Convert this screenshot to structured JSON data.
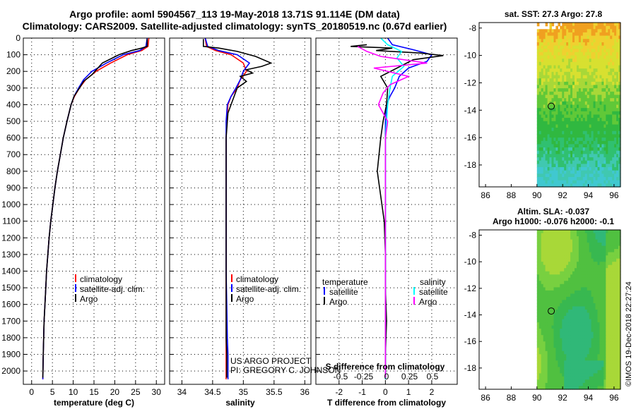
{
  "title_line1": "Argo profile: aoml 5904567_113 19-May-2018 13.71S 91.114E (DM data)",
  "title_line2": "Climatology: CARS2009. Satellite-adjusted climatology: synTS_20180519.nc (0.67d earlier)",
  "credit_line1": "US ARGO PROJECT",
  "credit_line2": "PI: GREGORY C. JOHNSON",
  "stamp": "©IMOS 19-Dec-2018 22:27:24",
  "colors": {
    "climatology": "#ff0000",
    "satellite": "#0000ff",
    "argo": "#000000",
    "argo_salinity": "#ff00ff",
    "sat_salinity": "#00ffff"
  },
  "chart_data": [
    {
      "type": "line",
      "name": "temperature-profile",
      "xlabel": "temperature (deg C)",
      "ylabel": "",
      "xlim": [
        -2,
        32
      ],
      "ylim": [
        2080,
        0
      ],
      "xticks": [
        0,
        5,
        10,
        15,
        20,
        25,
        30
      ],
      "yticks": [
        0,
        100,
        200,
        300,
        400,
        500,
        600,
        700,
        800,
        900,
        1000,
        1100,
        1200,
        1300,
        1400,
        1500,
        1600,
        1700,
        1800,
        1900,
        2000
      ],
      "legend": [
        "climatology",
        "satellite-adj. clim.",
        "Argo"
      ],
      "series": [
        {
          "name": "climatology",
          "color": "#ff0000",
          "x": [
            28.2,
            28.0,
            26.5,
            23,
            19,
            15.5,
            13,
            11.5,
            10.3,
            9.5,
            8.5,
            7.6,
            6.9,
            6.2,
            5.6,
            5.1,
            4.6,
            4.2,
            3.9,
            3.6,
            3.4,
            3.2,
            3.0,
            2.9,
            2.8,
            2.7
          ],
          "y": [
            0,
            50,
            75,
            100,
            150,
            200,
            250,
            300,
            350,
            400,
            500,
            600,
            700,
            800,
            900,
            1000,
            1100,
            1200,
            1300,
            1400,
            1500,
            1600,
            1700,
            1800,
            1900,
            2050
          ]
        },
        {
          "name": "satellite-adj. clim.",
          "color": "#0000ff",
          "x": [
            27.8,
            27.5,
            26,
            22,
            18,
            14.5,
            12.5,
            11.3,
            10.2,
            9.5,
            8.5,
            7.6,
            6.9,
            6.2,
            5.6,
            5.1,
            4.6,
            4.2,
            3.9,
            3.6,
            3.4,
            3.2,
            3.0,
            2.9,
            2.8,
            2.7
          ],
          "y": [
            0,
            50,
            75,
            100,
            150,
            200,
            250,
            300,
            350,
            400,
            500,
            600,
            700,
            800,
            900,
            1000,
            1100,
            1200,
            1300,
            1400,
            1500,
            1600,
            1700,
            1800,
            1900,
            2050
          ]
        },
        {
          "name": "Argo",
          "color": "#000000",
          "x": [
            27.8,
            27.8,
            26.5,
            24,
            21,
            17,
            14.5,
            12.5,
            11.5,
            10.2,
            9.5,
            8.5,
            7.6,
            6.9,
            6.2,
            5.6,
            5.1,
            4.6,
            4.2,
            3.9,
            3.6,
            3.4,
            3.2,
            3.0,
            2.9,
            2.8,
            2.7
          ],
          "y": [
            5,
            50,
            60,
            75,
            100,
            150,
            220,
            260,
            300,
            350,
            400,
            500,
            600,
            700,
            800,
            900,
            1000,
            1100,
            1200,
            1300,
            1400,
            1500,
            1600,
            1700,
            1800,
            1900,
            2040
          ]
        }
      ]
    },
    {
      "type": "line",
      "name": "salinity-profile",
      "xlabel": "salinity",
      "ylabel": "",
      "xlim": [
        33.8,
        36.1
      ],
      "ylim": [
        2080,
        0
      ],
      "xticks": [
        34,
        34.5,
        35,
        35.5,
        36
      ],
      "legend": [
        "climatology",
        "satellite-adj. clim.",
        "Argo"
      ],
      "series": [
        {
          "name": "climatology",
          "color": "#ff0000",
          "x": [
            34.38,
            34.4,
            34.55,
            34.8,
            35.0,
            35.05,
            34.95,
            34.9,
            34.8,
            34.75,
            34.73,
            34.72,
            34.72,
            34.72,
            34.72,
            34.72,
            34.72,
            34.72,
            34.72,
            34.72,
            34.72,
            34.72
          ],
          "y": [
            0,
            50,
            75,
            100,
            150,
            200,
            250,
            300,
            350,
            400,
            500,
            600,
            700,
            800,
            900,
            1000,
            1200,
            1400,
            1600,
            1800,
            1900,
            2050
          ]
        },
        {
          "name": "satellite-adj. clim.",
          "color": "#0000ff",
          "x": [
            34.38,
            34.42,
            34.6,
            34.9,
            35.1,
            35.0,
            34.95,
            34.88,
            34.8,
            34.74,
            34.72,
            34.72,
            34.72,
            34.72,
            34.72,
            34.72,
            34.72,
            34.72,
            34.73,
            34.74,
            34.75,
            34.75
          ],
          "y": [
            0,
            50,
            75,
            100,
            150,
            200,
            250,
            300,
            350,
            400,
            500,
            600,
            700,
            800,
            900,
            1000,
            1200,
            1400,
            1600,
            1800,
            1900,
            2050
          ]
        },
        {
          "name": "Argo",
          "color": "#000000",
          "x": [
            34.35,
            34.35,
            34.6,
            34.9,
            35.2,
            35.45,
            35.3,
            35.05,
            35.15,
            34.95,
            35.05,
            34.9,
            34.85,
            34.75,
            34.72,
            34.72,
            34.72,
            34.72,
            34.72,
            34.72,
            34.73,
            34.73
          ],
          "y": [
            5,
            50,
            60,
            80,
            110,
            150,
            170,
            190,
            210,
            230,
            260,
            300,
            350,
            450,
            600,
            800,
            1000,
            1400,
            1600,
            1800,
            1900,
            2040
          ]
        }
      ]
    },
    {
      "type": "line",
      "name": "difference-profile",
      "xlabel": "T difference from climatology",
      "x2label": "S difference from climatology",
      "xlim": [
        -3,
        3.1
      ],
      "ylim": [
        2080,
        0
      ],
      "xticks": [
        -2,
        -1,
        0,
        1,
        2
      ],
      "x2ticks": [
        -0.5,
        -0.25,
        0,
        0.25,
        0.5
      ],
      "x2ticklabels": [
        "-0.5",
        "-0.25",
        "0",
        "0.25",
        "0.5"
      ],
      "legend_t": [
        "temperature",
        "satellite",
        "Argo"
      ],
      "legend_s": [
        "salinity",
        "satellite",
        "Argo"
      ],
      "series": [
        {
          "name": "T satellite",
          "color": "#0000ff",
          "x": [
            0.1,
            0.3,
            1.2,
            2.0,
            1.8,
            1.0,
            0.6,
            0.4,
            0.2,
            0.05,
            0,
            0,
            0,
            0,
            0,
            0,
            0,
            0,
            0
          ],
          "y": [
            0,
            40,
            70,
            100,
            140,
            180,
            230,
            300,
            350,
            400,
            500,
            700,
            900,
            1100,
            1300,
            1500,
            1700,
            1900,
            2050
          ]
        },
        {
          "name": "T Argo",
          "color": "#000000",
          "x": [
            -0.8,
            -1.5,
            0.3,
            -0.4,
            1.5,
            2.5,
            1.2,
            0.5,
            -0.2,
            0.1,
            0.05,
            -0.1,
            -0.2,
            -0.35,
            -0.2,
            -0.05,
            0,
            0,
            0.05,
            0,
            0
          ],
          "y": [
            40,
            50,
            60,
            75,
            90,
            105,
            130,
            180,
            230,
            300,
            400,
            500,
            600,
            800,
            950,
            1100,
            1300,
            1500,
            1700,
            1900,
            2040
          ]
        },
        {
          "name": "S satellite",
          "color": "#00ffff",
          "x": [
            -0.2,
            0.1,
            0.7,
            0.5,
            0.8,
            0.3,
            0.2,
            0.1,
            0.05,
            0,
            0,
            0,
            0,
            0,
            0,
            0,
            0,
            0
          ],
          "y": [
            0,
            40,
            80,
            120,
            170,
            230,
            300,
            400,
            500,
            600,
            800,
            1000,
            1200,
            1400,
            1600,
            1800,
            1900,
            2050
          ]
        },
        {
          "name": "S Argo",
          "color": "#ff00ff",
          "x": [
            -1.2,
            -0.8,
            -0.2,
            1.8,
            -0.5,
            1.0,
            0.2,
            -0.1,
            -0.3,
            0.1,
            0,
            0,
            0,
            0,
            0,
            0,
            0,
            0
          ],
          "y": [
            50,
            80,
            110,
            150,
            180,
            230,
            280,
            330,
            400,
            500,
            600,
            800,
            1000,
            1200,
            1400,
            1600,
            1800,
            2040
          ]
        }
      ]
    },
    {
      "type": "heatmap",
      "name": "sst-map",
      "title": "sat. SST: 27.3 Argo: 27.8",
      "xlim": [
        85.5,
        96.5
      ],
      "ylim": [
        -19.6,
        -7.6
      ],
      "xticks": [
        86,
        88,
        90,
        92,
        94,
        96
      ],
      "yticks": [
        -8,
        -10,
        -12,
        -14,
        -16,
        -18
      ],
      "point": {
        "lon": 91.114,
        "lat": -13.71
      }
    },
    {
      "type": "heatmap",
      "name": "sla-map",
      "title": "Altim. SLA: -0.037",
      "subtitle": "Argo h1000: -0.076 h2000: -0.1",
      "xlim": [
        85.5,
        96.5
      ],
      "ylim": [
        -19.6,
        -7.6
      ],
      "xticks": [
        86,
        88,
        90,
        92,
        94,
        96
      ],
      "yticks": [
        -8,
        -10,
        -12,
        -14,
        -16,
        -18
      ],
      "point": {
        "lon": 91.114,
        "lat": -13.71
      }
    }
  ]
}
